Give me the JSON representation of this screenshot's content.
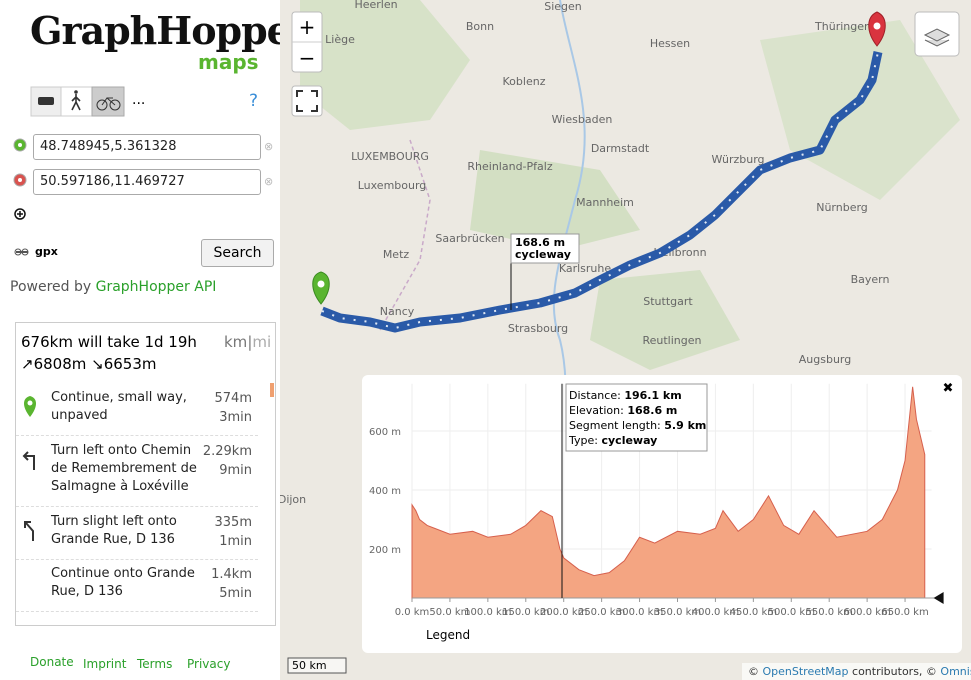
{
  "header": {
    "logo": "GraphHopper",
    "logo_sub": "maps",
    "more": "...",
    "help": "?"
  },
  "inputs": [
    "48.748945,5.361328",
    "50.597186,11.469727"
  ],
  "gpx": "gpx",
  "search": "Search",
  "powered": {
    "text": "Powered by",
    "link": "GraphHopper API"
  },
  "summary": {
    "time": "676km will take 1d 19h",
    "units": [
      "km",
      "mi"
    ],
    "separator": "|",
    "ascend": "↗6808m",
    "descend": "↘6653m"
  },
  "instructions": [
    {
      "text": "Continue, small way, unpaved",
      "distance": "574m",
      "time": "3min"
    },
    {
      "text": "Turn left onto Chemin de Remembrement de Salmagne à Loxéville",
      "distance": "2.29km",
      "time": "9min"
    },
    {
      "text": "Turn slight left onto Grande Rue, D 136",
      "distance": "335m",
      "time": "1min"
    },
    {
      "text": "Continue onto Grande Rue, D 136",
      "distance": "1.4km",
      "time": "5min"
    }
  ],
  "footer": [
    "Donate",
    "Imprint",
    "Terms",
    "Privacy"
  ],
  "map": {
    "zoom_in": "+",
    "zoom_out": "−",
    "labels": [
      "Heerlen",
      "Siegen",
      "Bonn",
      "Liège",
      "Hessen",
      "Koblenz",
      "Thüringen",
      "Wiesbaden",
      "Darmstadt",
      "LUXEMBOURG",
      "Luxembourg",
      "Rheinland-Pfalz",
      "Würzburg",
      "Mannheim",
      "Nürnberg",
      "Saarbrücken",
      "Metz",
      "Karlsruhe",
      "Heilbronn",
      "Stuttgart",
      "Nancy",
      "Strasbourg",
      "Reutlingen",
      "Bayern",
      "Augsburg",
      "Dijon"
    ],
    "popup": {
      "elevation": "168.6 m",
      "type": "cycleway"
    },
    "scale": "50 km",
    "attribution": [
      "©",
      "OpenStreetMap",
      "contributors, ©",
      "Omniscale"
    ]
  },
  "chart_data": {
    "type": "area",
    "close": "✖",
    "x": [
      0,
      5,
      10,
      20,
      30,
      50,
      80,
      100,
      130,
      150,
      170,
      185,
      195,
      200,
      220,
      240,
      260,
      280,
      300,
      320,
      350,
      380,
      400,
      410,
      430,
      450,
      470,
      490,
      510,
      530,
      560,
      600,
      620,
      640,
      650,
      660,
      665,
      676
    ],
    "values": [
      350,
      330,
      300,
      280,
      270,
      250,
      260,
      240,
      250,
      280,
      330,
      310,
      200,
      170,
      130,
      110,
      120,
      160,
      240,
      220,
      260,
      250,
      270,
      330,
      260,
      300,
      380,
      280,
      250,
      330,
      240,
      260,
      300,
      400,
      500,
      750,
      640,
      520
    ],
    "color": "#f4a582",
    "xlim": [
      0,
      685
    ],
    "ylim": [
      34,
      760
    ],
    "xticks": [
      {
        "value": 0,
        "label": "0.0 km"
      },
      {
        "value": 50,
        "label": "50.0 km"
      },
      {
        "value": 100,
        "label": "100.0 km"
      },
      {
        "value": 150,
        "label": "150.0 km"
      },
      {
        "value": 200,
        "label": "200.0 km"
      },
      {
        "value": 250,
        "label": "250.0 km"
      },
      {
        "value": 300,
        "label": "300.0 km"
      },
      {
        "value": 350,
        "label": "350.0 km"
      },
      {
        "value": 400,
        "label": "400.0 km"
      },
      {
        "value": 450,
        "label": "450.0 km"
      },
      {
        "value": 500,
        "label": "500.0 km"
      },
      {
        "value": 550,
        "label": "550.0 km"
      },
      {
        "value": 600,
        "label": "600.0 km"
      },
      {
        "value": 650,
        "label": "650.0 km"
      }
    ],
    "yticks": [
      {
        "value": 200,
        "label": "200 m"
      },
      {
        "value": 400,
        "label": "400 m"
      },
      {
        "value": 600,
        "label": "600 m"
      }
    ],
    "grid": true,
    "tooltip": [
      {
        "label": "Distance:",
        "value": "196.1 km"
      },
      {
        "label": "Elevation:",
        "value": "168.6 m"
      },
      {
        "label": "Segment length:",
        "value": "5.9 km"
      },
      {
        "label": "Type:",
        "value": "cycleway"
      }
    ],
    "legend": "Legend"
  }
}
